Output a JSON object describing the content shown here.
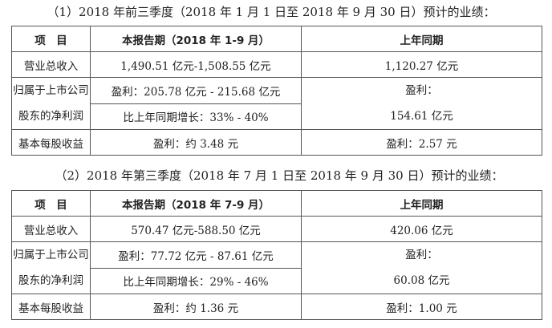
{
  "sections": [
    {
      "title": "（1）2018 年前三季度（2018 年 1 月 1 日至 2018 年 9 月 30 日）预计的业绩：",
      "headers": [
        "项　目",
        "本报告期（2018 年 1-9 月）",
        "上年同期"
      ],
      "revenue": {
        "label": "营业总收入",
        "current": "1,490.51 亿元-1,508.55 亿元",
        "prior": "1,120.27 亿元"
      },
      "net_profit": {
        "label_line1": "归属于上市公司",
        "label_line2": "股东的净利润",
        "current_profit": "盈利：205.78 亿元 - 215.68 亿元",
        "current_growth": "比上年同期增长：33% - 40%",
        "prior_line1": "盈利：",
        "prior_line2": "154.61 亿元"
      },
      "eps": {
        "label": "基本每股收益",
        "current": "盈利：约 3.48 元",
        "prior": "盈利：2.57 元"
      }
    },
    {
      "title": "（2）2018 年第三季度（2018 年 7 月 1 日至 2018 年 9 月 30 日）预计的业绩：",
      "headers": [
        "项　目",
        "本报告期（2018 年 7-9 月）",
        "上年同期"
      ],
      "revenue": {
        "label": "营业总收入",
        "current": "570.47 亿元-588.50 亿元",
        "prior": "420.06 亿元"
      },
      "net_profit": {
        "label_line1": "归属于上市公司",
        "label_line2": "股东的净利润",
        "current_profit": "盈利：77.72 亿元 - 87.61 亿元",
        "current_growth": "比上年同期增长：29% - 46%",
        "prior_line1": "盈利：",
        "prior_line2": "60.08 亿元"
      },
      "eps": {
        "label": "基本每股收益",
        "current": "盈利：约 1.36 元",
        "prior": "盈利：1.00 元"
      }
    }
  ]
}
